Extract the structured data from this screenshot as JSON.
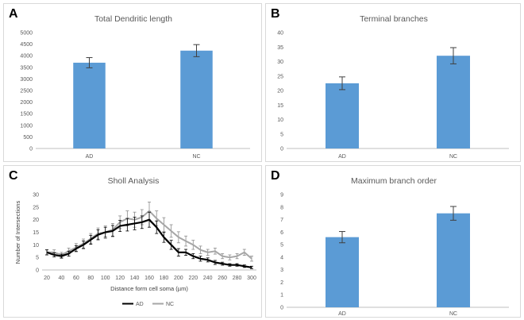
{
  "panels": [
    {
      "letter": "A",
      "chart_data": {
        "type": "bar",
        "title": "Total Dendritic length",
        "categories": [
          "AD",
          "NC"
        ],
        "values": [
          3700,
          4220
        ],
        "errors": [
          220,
          260
        ],
        "ylim": [
          0,
          5000
        ],
        "yticks": [
          0,
          500,
          1000,
          1500,
          2000,
          2500,
          3000,
          3500,
          4000,
          4500,
          5000
        ],
        "grid": false,
        "xlabel": "",
        "ylabel": ""
      }
    },
    {
      "letter": "B",
      "chart_data": {
        "type": "bar",
        "title": "Terminal branches",
        "categories": [
          "AD",
          "NC"
        ],
        "values": [
          22.5,
          32
        ],
        "errors": [
          2.2,
          2.8
        ],
        "ylim": [
          0,
          40
        ],
        "yticks": [
          0,
          5,
          10,
          15,
          20,
          25,
          30,
          35,
          40
        ],
        "grid": false,
        "xlabel": "",
        "ylabel": ""
      }
    },
    {
      "letter": "C",
      "chart_data": {
        "type": "line",
        "title": "Sholl Analysis",
        "xlabel": "Distance form cell soma (µm)",
        "ylabel": "Number of Intersections",
        "x": [
          20,
          30,
          40,
          50,
          60,
          70,
          80,
          90,
          100,
          110,
          120,
          130,
          140,
          150,
          160,
          170,
          180,
          190,
          200,
          210,
          220,
          230,
          240,
          250,
          260,
          270,
          280,
          290,
          300
        ],
        "xticks": [
          20,
          40,
          60,
          80,
          100,
          120,
          140,
          160,
          180,
          200,
          220,
          240,
          260,
          280,
          300
        ],
        "ylim": [
          0,
          30
        ],
        "yticks": [
          0,
          5,
          10,
          15,
          20,
          25,
          30
        ],
        "legend_position": "bottom",
        "series": [
          {
            "name": "AD",
            "color": "#000000",
            "values": [
              7,
              6,
              5.5,
              6.5,
              8.5,
              10,
              12,
              14,
              15,
              15.5,
              17.5,
              18,
              18.5,
              19,
              20,
              17,
              13,
              10,
              7,
              7,
              5.5,
              4.5,
              4,
              3,
              2.5,
              2,
              2,
              1.5,
              1
            ],
            "errors": [
              1,
              0.8,
              0.8,
              1,
              1.2,
              1.5,
              1.8,
              2,
              2,
              2.2,
              2.2,
              2.5,
              2.5,
              2.5,
              3,
              2.5,
              2,
              1.8,
              1.5,
              1.2,
              1,
              1,
              0.8,
              0.8,
              0.6,
              0.5,
              0.5,
              0.5,
              0.5
            ]
          },
          {
            "name": "NC",
            "color": "#a6a6a6",
            "values": [
              7,
              7,
              6,
              7.5,
              9,
              10.5,
              12.5,
              14.5,
              15,
              16,
              19,
              20.5,
              20,
              21,
              23.5,
              20.5,
              18,
              15.5,
              13,
              11.5,
              10,
              8,
              7,
              7.5,
              5.5,
              5,
              5.5,
              7,
              4.5
            ],
            "errors": [
              1,
              1,
              1,
              1.2,
              1.5,
              1.8,
              2,
              2.2,
              2.5,
              2.5,
              2.5,
              3,
              3,
              3,
              3.5,
              3,
              2.8,
              2.5,
              2.2,
              2,
              1.8,
              1.5,
              1.2,
              1.2,
              1,
              1,
              1,
              1.2,
              1
            ]
          }
        ]
      }
    },
    {
      "letter": "D",
      "chart_data": {
        "type": "bar",
        "title": "Maximum branch order",
        "categories": [
          "AD",
          "NC"
        ],
        "values": [
          5.6,
          7.5
        ],
        "errors": [
          0.45,
          0.55
        ],
        "ylim": [
          0,
          9
        ],
        "yticks": [
          0,
          1,
          2,
          3,
          4,
          5,
          6,
          7,
          8,
          9
        ],
        "grid": false,
        "xlabel": "",
        "ylabel": ""
      }
    }
  ],
  "colors": {
    "bar": "#5b9bd5",
    "axis": "#bfbfbf",
    "errorbar": "#404040"
  }
}
